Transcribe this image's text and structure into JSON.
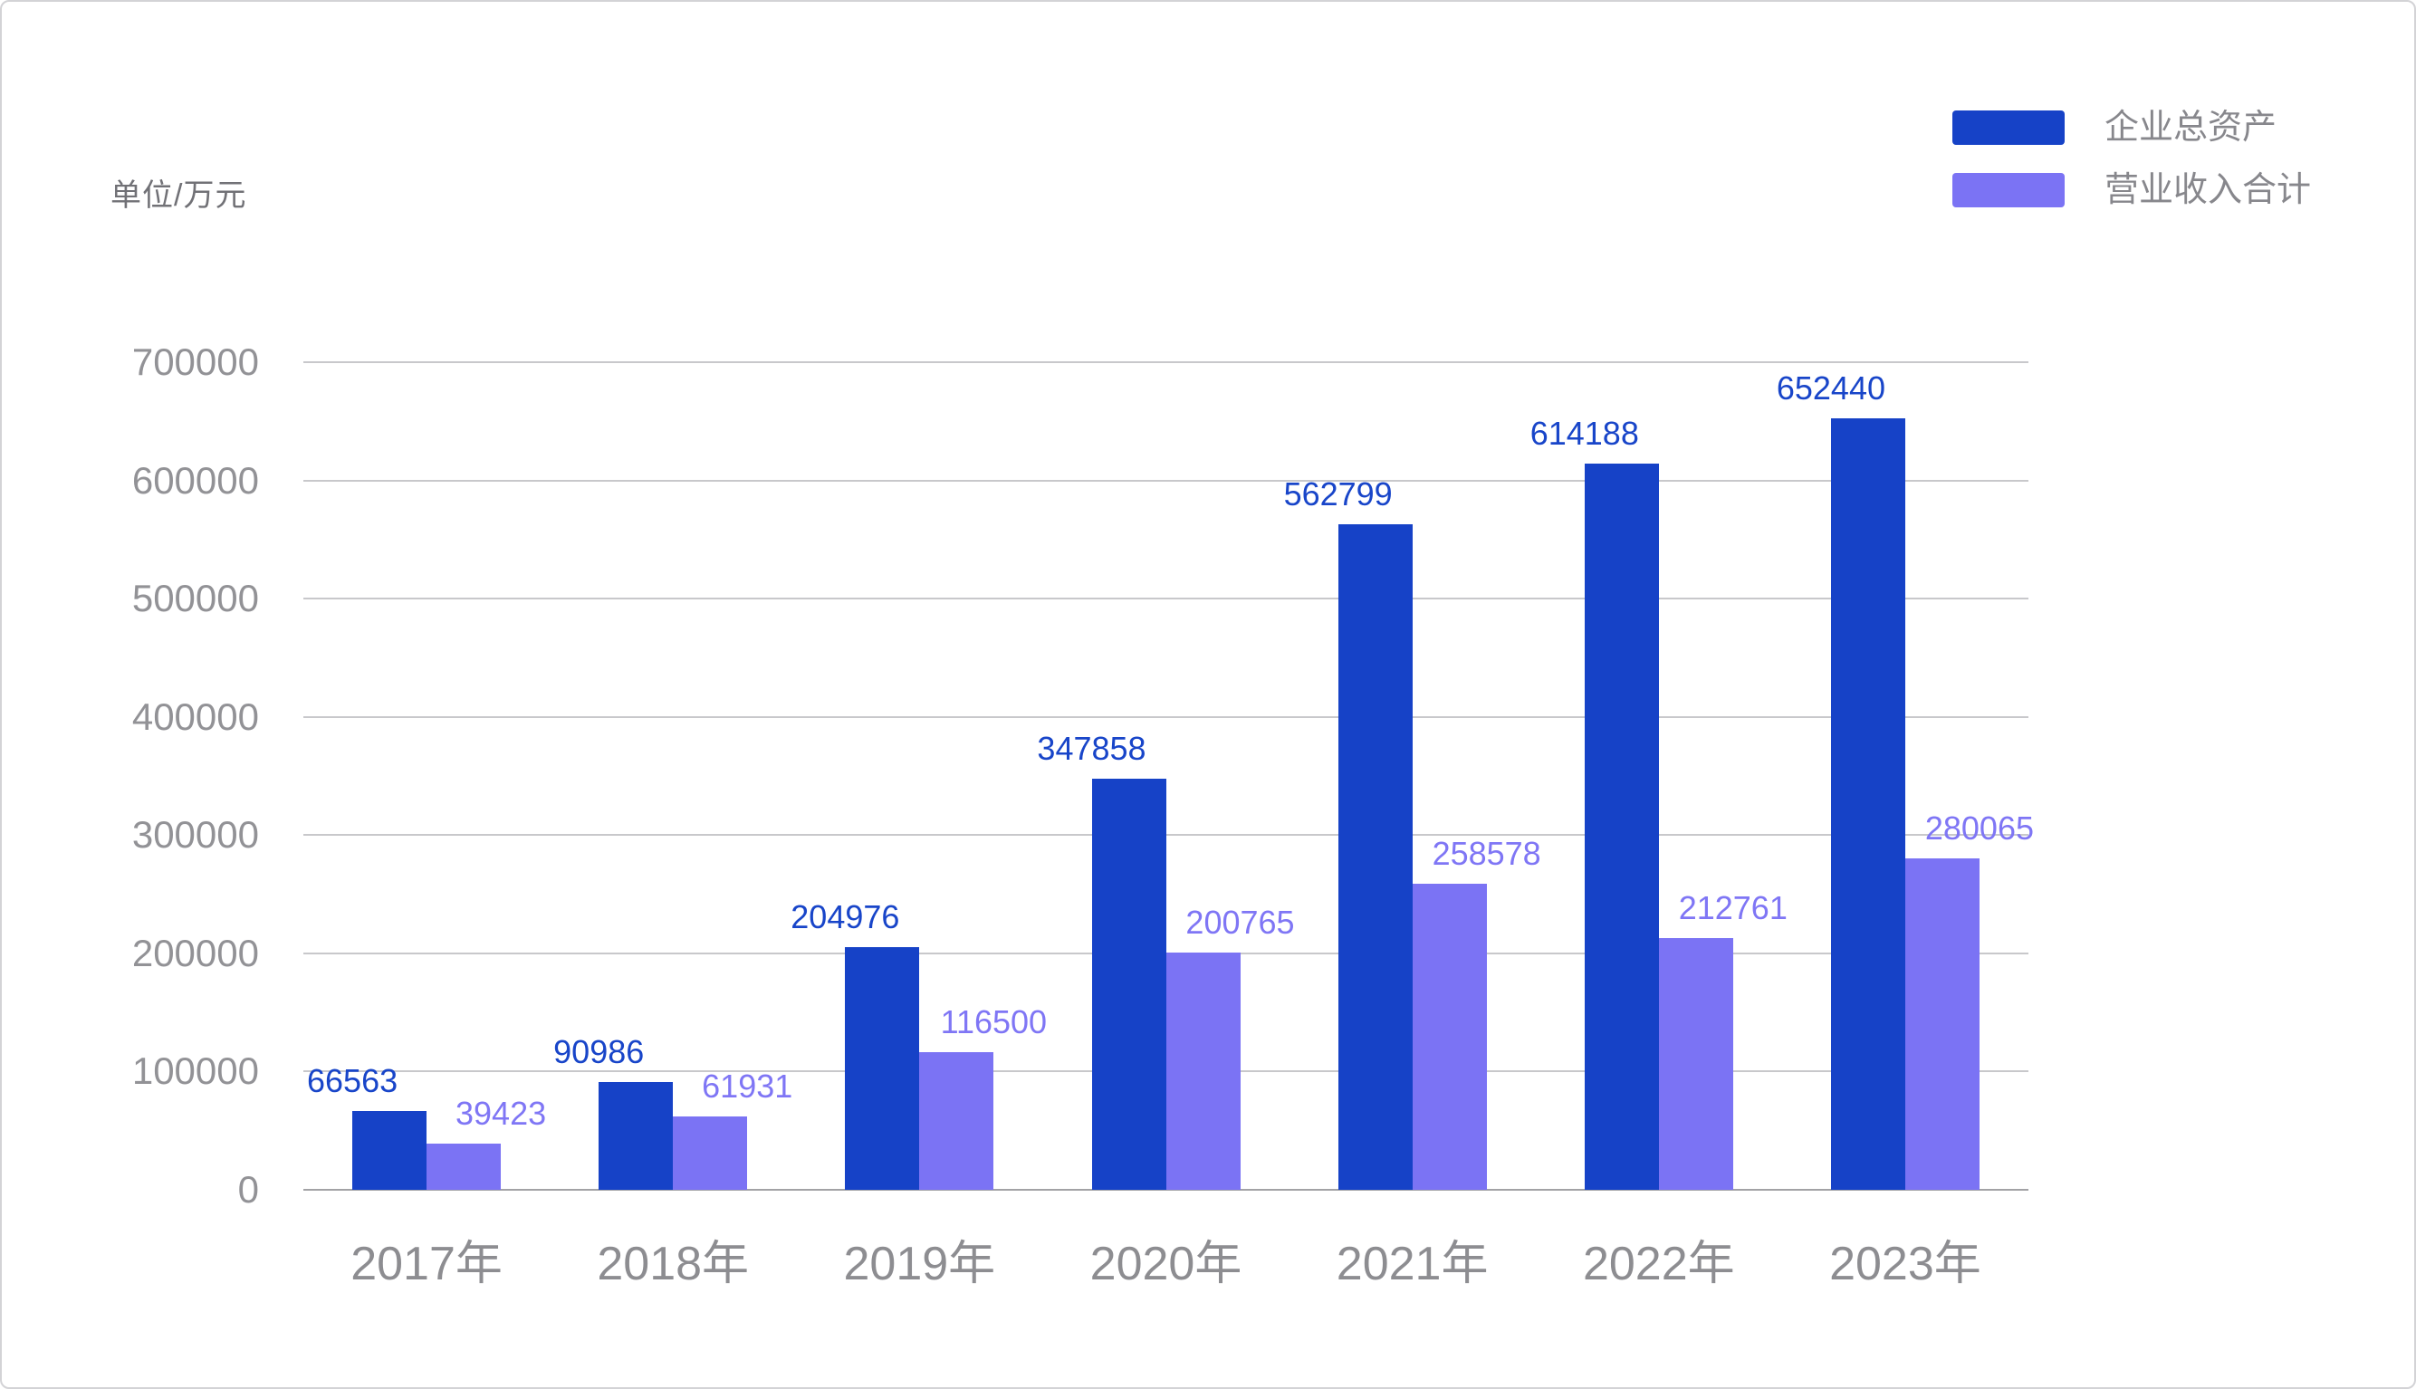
{
  "unit_label": "单位/万元",
  "chart_data": {
    "type": "bar",
    "title": "",
    "xlabel": "",
    "ylabel": "单位/万元",
    "categories": [
      "2017年",
      "2018年",
      "2019年",
      "2020年",
      "2021年",
      "2022年",
      "2023年"
    ],
    "series": [
      {
        "name": "企业总资产",
        "color": "#1642c7",
        "label_color": "#1845c9",
        "values": [
          66563,
          90986,
          204976,
          347858,
          562799,
          614188,
          652440
        ]
      },
      {
        "name": "营业收入合计",
        "color": "#7b73f4",
        "label_color": "#7f76f5",
        "values": [
          39423,
          61931,
          116500,
          200765,
          258578,
          212761,
          280065
        ]
      }
    ],
    "ylim": [
      0,
      700000
    ],
    "yticks": [
      0,
      100000,
      200000,
      300000,
      400000,
      500000,
      600000,
      700000
    ],
    "grid": true,
    "data_labels": true,
    "legend_position": "top-right"
  },
  "colors": {
    "background": "#ffffff",
    "border": "#d3d3d6",
    "gridline": "#c8c8cb",
    "baseline": "#a2a2a5",
    "axis_text": "#929296",
    "x_axis_text": "#8d8d91",
    "legend_text": "#87878c",
    "unit_text": "#717176"
  }
}
